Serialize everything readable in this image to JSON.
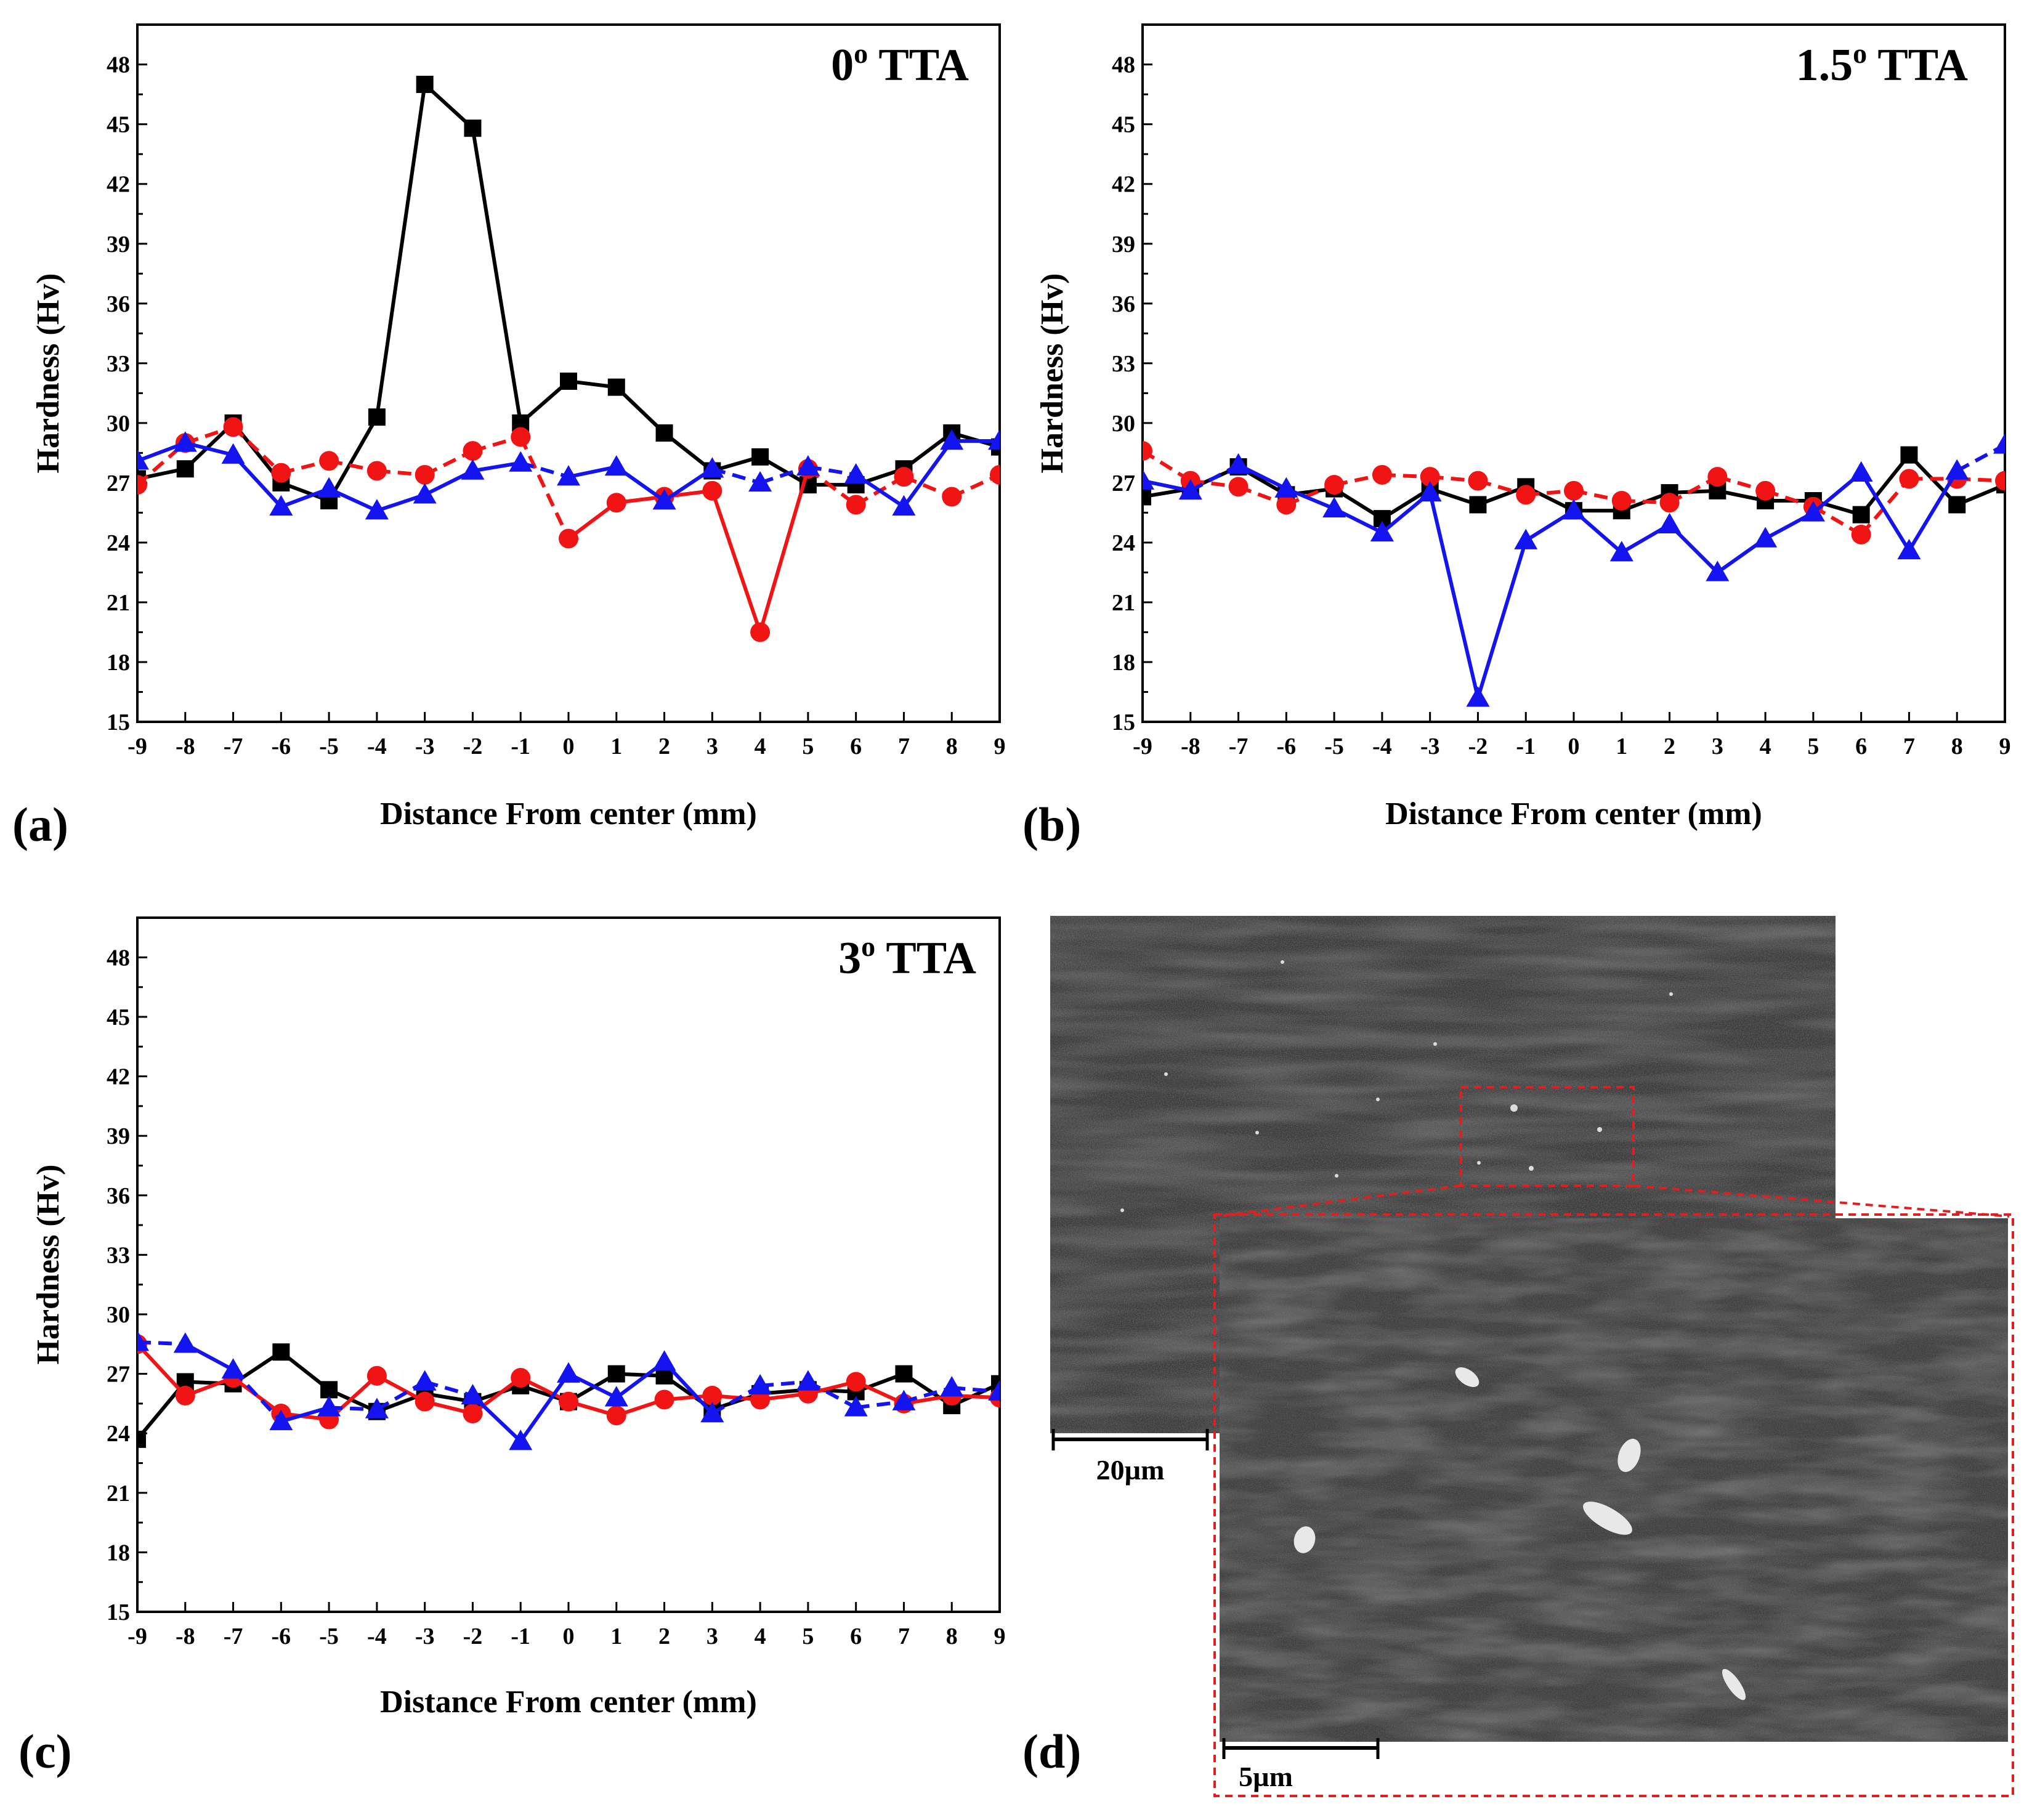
{
  "figure": {
    "panel_labels": [
      "(a)",
      "(b)",
      "(c)",
      "(d)"
    ],
    "micrograph": {
      "scale_bar_main": "20µm",
      "scale_bar_inset": "5µm",
      "inset_border_color": "#e02020"
    }
  },
  "colors": {
    "black": "#000000",
    "red": "#f01414",
    "blue": "#1414f0"
  },
  "chart_data": [
    {
      "type": "line",
      "panel": "(a)",
      "title": "0",
      "title_sup": "o",
      "title_suffix": " TTA",
      "xlabel": "Distance From center (mm)",
      "ylabel": "Hardness (Hv)",
      "xlim": [
        -9,
        9
      ],
      "ylim": [
        15,
        50
      ],
      "xticks": [
        -9,
        -8,
        -7,
        -6,
        -5,
        -4,
        -3,
        -2,
        -1,
        0,
        1,
        2,
        3,
        4,
        5,
        6,
        7,
        8,
        9
      ],
      "yticks": [
        15,
        18,
        21,
        24,
        27,
        30,
        33,
        36,
        39,
        42,
        45,
        48
      ],
      "x": [
        -9,
        -8,
        -7,
        -6,
        -5,
        -4,
        -3,
        -2,
        -1,
        0,
        1,
        2,
        3,
        4,
        5,
        6,
        7,
        8,
        9
      ],
      "series": [
        {
          "marker": "square",
          "color": "#000000",
          "dash": "solid",
          "values": [
            27.2,
            27.7,
            30.0,
            27.0,
            26.1,
            30.3,
            47.0,
            44.8,
            30.0,
            32.1,
            31.8,
            29.5,
            27.6,
            28.3,
            26.9,
            26.9,
            27.7,
            29.5,
            28.8
          ]
        },
        {
          "marker": "circle",
          "color": "#f01414",
          "dash": "mixed",
          "dash_pattern": [
            1,
            1,
            1,
            1,
            1,
            1,
            1,
            1,
            1,
            0,
            0,
            0,
            0,
            0,
            1,
            1,
            1,
            1
          ],
          "values": [
            26.9,
            29.0,
            29.8,
            27.5,
            28.1,
            27.6,
            27.4,
            28.6,
            29.3,
            24.2,
            26.0,
            26.3,
            26.6,
            19.5,
            27.7,
            25.9,
            27.3,
            26.3,
            27.4
          ]
        },
        {
          "marker": "triangle",
          "color": "#1414f0",
          "dash": "mixed",
          "dash_pattern": [
            0,
            0,
            0,
            0,
            0,
            0,
            0,
            0,
            1,
            0,
            0,
            0,
            1,
            1,
            1,
            0,
            0,
            0
          ],
          "values": [
            28.1,
            29.0,
            28.4,
            25.8,
            26.7,
            25.6,
            26.4,
            27.6,
            28.0,
            27.3,
            27.8,
            26.1,
            27.7,
            27.0,
            27.8,
            27.4,
            25.8,
            29.1,
            29.1
          ]
        }
      ]
    },
    {
      "type": "line",
      "panel": "(b)",
      "title": "1.5",
      "title_sup": "o",
      "title_suffix": " TTA",
      "xlabel": "Distance From center (mm)",
      "ylabel": "Hardness (Hv)",
      "xlim": [
        -9,
        9
      ],
      "ylim": [
        15,
        50
      ],
      "xticks": [
        -9,
        -8,
        -7,
        -6,
        -5,
        -4,
        -3,
        -2,
        -1,
        0,
        1,
        2,
        3,
        4,
        5,
        6,
        7,
        8,
        9
      ],
      "yticks": [
        15,
        18,
        21,
        24,
        27,
        30,
        33,
        36,
        39,
        42,
        45,
        48
      ],
      "x": [
        -9,
        -8,
        -7,
        -6,
        -5,
        -4,
        -3,
        -2,
        -1,
        0,
        1,
        2,
        3,
        4,
        5,
        6,
        7,
        8,
        9
      ],
      "series": [
        {
          "marker": "square",
          "color": "#000000",
          "dash": "solid",
          "values": [
            26.3,
            26.7,
            27.8,
            26.4,
            26.7,
            25.2,
            26.7,
            25.9,
            26.8,
            25.6,
            25.6,
            26.5,
            26.6,
            26.1,
            26.1,
            25.4,
            28.4,
            25.9,
            26.9
          ]
        },
        {
          "marker": "circle",
          "color": "#f01414",
          "dash": "dashed",
          "values": [
            28.6,
            27.1,
            26.8,
            25.9,
            26.9,
            27.4,
            27.3,
            27.1,
            26.4,
            26.6,
            26.1,
            26.0,
            27.3,
            26.6,
            25.8,
            24.4,
            27.2,
            27.2,
            27.1
          ]
        },
        {
          "marker": "triangle",
          "color": "#1414f0",
          "dash": "mixed",
          "dash_pattern": [
            0,
            1,
            0,
            0,
            0,
            0,
            0,
            0,
            0,
            0,
            0,
            0,
            0,
            0,
            0,
            0,
            0,
            1
          ],
          "values": [
            27.1,
            26.6,
            27.9,
            26.7,
            25.7,
            24.5,
            26.5,
            16.2,
            24.1,
            25.6,
            23.5,
            24.9,
            22.5,
            24.2,
            25.5,
            27.5,
            23.6,
            27.6,
            28.9
          ]
        }
      ]
    },
    {
      "type": "line",
      "panel": "(c)",
      "title": "3",
      "title_sup": "o",
      "title_suffix": " TTA",
      "xlabel": "Distance From center (mm)",
      "ylabel": "Hardness (Hv)",
      "xlim": [
        -9,
        9
      ],
      "ylim": [
        15,
        50
      ],
      "xticks": [
        -9,
        -8,
        -7,
        -6,
        -5,
        -4,
        -3,
        -2,
        -1,
        0,
        1,
        2,
        3,
        4,
        5,
        6,
        7,
        8,
        9
      ],
      "yticks": [
        15,
        18,
        21,
        24,
        27,
        30,
        33,
        36,
        39,
        42,
        45,
        48
      ],
      "x": [
        -9,
        -8,
        -7,
        -6,
        -5,
        -4,
        -3,
        -2,
        -1,
        0,
        1,
        2,
        3,
        4,
        5,
        6,
        7,
        8,
        9
      ],
      "series": [
        {
          "marker": "square",
          "color": "#000000",
          "dash": "solid",
          "values": [
            23.7,
            26.6,
            26.5,
            28.1,
            26.2,
            25.1,
            26.0,
            25.6,
            26.4,
            25.6,
            27.0,
            26.9,
            25.2,
            26.0,
            26.2,
            26.1,
            27.0,
            25.4,
            26.5
          ]
        },
        {
          "marker": "circle",
          "color": "#f01414",
          "dash": "solid",
          "values": [
            28.5,
            25.9,
            26.8,
            25.0,
            24.7,
            26.9,
            25.6,
            25.0,
            26.8,
            25.6,
            24.9,
            25.7,
            25.9,
            25.7,
            26.0,
            26.6,
            25.5,
            25.9,
            25.8
          ]
        },
        {
          "marker": "triangle",
          "color": "#1414f0",
          "dash": "mixed",
          "dash_pattern": [
            1,
            0,
            1,
            0,
            1,
            1,
            1,
            0,
            0,
            0,
            0,
            0,
            1,
            1,
            1,
            1,
            1,
            1
          ],
          "values": [
            28.6,
            28.5,
            27.2,
            24.6,
            25.3,
            25.2,
            26.6,
            25.9,
            23.6,
            27.0,
            25.8,
            27.6,
            25.0,
            26.4,
            26.6,
            25.3,
            25.6,
            26.3,
            26.1
          ]
        }
      ]
    }
  ]
}
